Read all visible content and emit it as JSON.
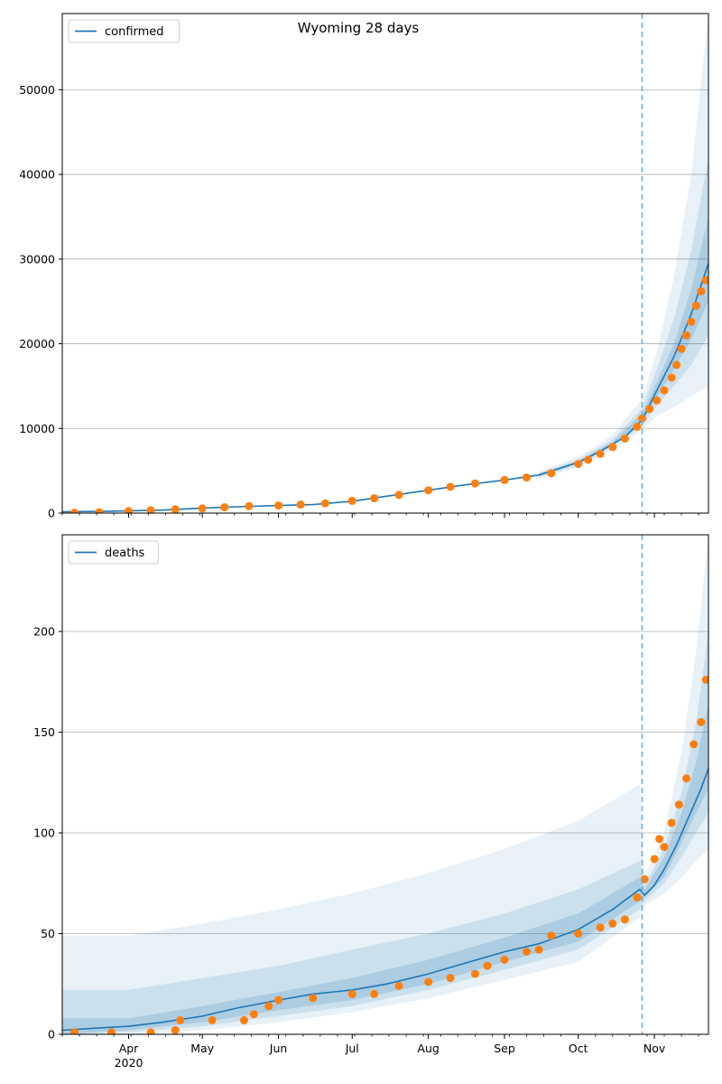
{
  "chart_data": [
    {
      "type": "line",
      "title": "Wyoming 28 days",
      "legend": {
        "entries": [
          "confirmed"
        ],
        "placement": "top-left"
      },
      "grid": {
        "y": true,
        "x": false
      },
      "x_range": [
        "2020-03-05",
        "2020-11-23"
      ],
      "ylim": [
        0,
        59000
      ],
      "y_ticks": [
        0,
        10000,
        20000,
        30000,
        40000,
        50000
      ],
      "forecast_start": "2020-10-27",
      "model_line": {
        "x": [
          "2020-03-05",
          "2020-03-25",
          "2020-04-15",
          "2020-05-01",
          "2020-05-15",
          "2020-06-01",
          "2020-06-15",
          "2020-07-01",
          "2020-07-15",
          "2020-08-01",
          "2020-08-15",
          "2020-09-01",
          "2020-09-15",
          "2020-10-01",
          "2020-10-10",
          "2020-10-20",
          "2020-10-27",
          "2020-11-02",
          "2020-11-09",
          "2020-11-16",
          "2020-11-23"
        ],
        "y": [
          150,
          220,
          350,
          600,
          750,
          900,
          1000,
          1400,
          2000,
          2700,
          3300,
          3900,
          4500,
          6000,
          7300,
          9000,
          11000,
          14500,
          18500,
          23500,
          29500
        ]
      },
      "bands": [
        {
          "level": "outer",
          "x": [
            "2020-09-15",
            "2020-10-01",
            "2020-10-15",
            "2020-10-27",
            "2020-11-02",
            "2020-11-09",
            "2020-11-16",
            "2020-11-23"
          ],
          "low": [
            4100,
            5400,
            7400,
            9800,
            11500,
            12500,
            13800,
            15000
          ],
          "high": [
            4900,
            6600,
            9200,
            13500,
            19000,
            28000,
            40000,
            59000
          ]
        },
        {
          "level": "middle",
          "x": [
            "2020-09-15",
            "2020-10-01",
            "2020-10-15",
            "2020-10-27",
            "2020-11-02",
            "2020-11-09",
            "2020-11-16",
            "2020-11-23"
          ],
          "low": [
            4250,
            5650,
            7800,
            10300,
            12700,
            15000,
            17500,
            21000
          ],
          "high": [
            4750,
            6350,
            8700,
            12400,
            17000,
            23000,
            31000,
            42000
          ]
        },
        {
          "level": "inner",
          "x": [
            "2020-09-15",
            "2020-10-01",
            "2020-10-15",
            "2020-10-27",
            "2020-11-02",
            "2020-11-09",
            "2020-11-16",
            "2020-11-23"
          ],
          "low": [
            4400,
            5850,
            8200,
            10700,
            13700,
            17000,
            20500,
            25000
          ],
          "high": [
            4600,
            6150,
            8400,
            11800,
            15500,
            20000,
            26500,
            35000
          ]
        }
      ],
      "observed": {
        "x": [
          "2020-03-10",
          "2020-03-20",
          "2020-04-01",
          "2020-04-10",
          "2020-04-20",
          "2020-05-01",
          "2020-05-10",
          "2020-05-20",
          "2020-06-01",
          "2020-06-10",
          "2020-06-20",
          "2020-07-01",
          "2020-07-10",
          "2020-07-20",
          "2020-08-01",
          "2020-08-10",
          "2020-08-20",
          "2020-09-01",
          "2020-09-10",
          "2020-09-20",
          "2020-10-01",
          "2020-10-05",
          "2020-10-10",
          "2020-10-15",
          "2020-10-20",
          "2020-10-25",
          "2020-10-27",
          "2020-10-30",
          "2020-11-02",
          "2020-11-05",
          "2020-11-08",
          "2020-11-10",
          "2020-11-12",
          "2020-11-14",
          "2020-11-16",
          "2020-11-18",
          "2020-11-20",
          "2020-11-22"
        ],
        "y": [
          40,
          100,
          250,
          330,
          450,
          560,
          680,
          820,
          900,
          1000,
          1150,
          1450,
          1750,
          2150,
          2700,
          3100,
          3500,
          3900,
          4200,
          4700,
          5800,
          6300,
          7000,
          7800,
          8800,
          10200,
          11200,
          12300,
          13300,
          14500,
          16000,
          17500,
          19400,
          21000,
          22600,
          24500,
          26200,
          27500
        ]
      }
    },
    {
      "type": "line",
      "legend": {
        "entries": [
          "deaths"
        ],
        "placement": "top-left"
      },
      "grid": {
        "y": true,
        "x": false
      },
      "x_range": [
        "2020-03-05",
        "2020-11-23"
      ],
      "ylim": [
        0,
        248
      ],
      "y_ticks": [
        0,
        50,
        100,
        150,
        200
      ],
      "forecast_start": "2020-10-27",
      "x_ticks": [
        {
          "date": "2020-04-01",
          "label": "Apr",
          "sublabel": "2020"
        },
        {
          "date": "2020-05-01",
          "label": "May"
        },
        {
          "date": "2020-06-01",
          "label": "Jun"
        },
        {
          "date": "2020-07-01",
          "label": "Jul"
        },
        {
          "date": "2020-08-01",
          "label": "Aug"
        },
        {
          "date": "2020-09-01",
          "label": "Sep"
        },
        {
          "date": "2020-10-01",
          "label": "Oct"
        },
        {
          "date": "2020-11-01",
          "label": "Nov"
        }
      ],
      "model_line": {
        "x": [
          "2020-03-05",
          "2020-03-18",
          "2020-04-01",
          "2020-04-15",
          "2020-05-01",
          "2020-05-15",
          "2020-06-01",
          "2020-06-15",
          "2020-07-01",
          "2020-07-15",
          "2020-08-01",
          "2020-08-15",
          "2020-09-01",
          "2020-09-15",
          "2020-10-01",
          "2020-10-15",
          "2020-10-26",
          "2020-10-28",
          "2020-11-01",
          "2020-11-05",
          "2020-11-10",
          "2020-11-15",
          "2020-11-20",
          "2020-11-23"
        ],
        "y": [
          2,
          3,
          4,
          6,
          9,
          13,
          17,
          20,
          22,
          25,
          30,
          35,
          41,
          45,
          52,
          62,
          72,
          69,
          74,
          82,
          94,
          108,
          122,
          132
        ]
      },
      "bands": [
        {
          "level": "outer",
          "x": [
            "2020-03-05",
            "2020-04-01",
            "2020-05-01",
            "2020-06-01",
            "2020-07-01",
            "2020-08-01",
            "2020-09-01",
            "2020-10-01",
            "2020-10-26",
            "2020-10-28",
            "2020-11-05",
            "2020-11-12",
            "2020-11-18",
            "2020-11-23"
          ],
          "low": [
            0,
            0,
            2,
            6,
            11,
            18,
            27,
            36,
            58,
            64,
            70,
            78,
            86,
            92
          ],
          "high": [
            49,
            49,
            55,
            62,
            70,
            80,
            92,
            106,
            124,
            78,
            100,
            140,
            190,
            248
          ]
        },
        {
          "level": "middle",
          "x": [
            "2020-03-05",
            "2020-04-01",
            "2020-05-01",
            "2020-06-01",
            "2020-07-01",
            "2020-08-01",
            "2020-09-01",
            "2020-10-01",
            "2020-10-26",
            "2020-10-28",
            "2020-11-05",
            "2020-11-12",
            "2020-11-18",
            "2020-11-23"
          ],
          "low": [
            0,
            1,
            4,
            9,
            14,
            22,
            32,
            42,
            62,
            66,
            75,
            88,
            100,
            110
          ],
          "high": [
            22,
            22,
            28,
            34,
            42,
            50,
            60,
            72,
            86,
            74,
            92,
            120,
            155,
            200
          ]
        },
        {
          "level": "inner",
          "x": [
            "2020-03-05",
            "2020-04-01",
            "2020-05-01",
            "2020-06-01",
            "2020-07-01",
            "2020-08-01",
            "2020-09-01",
            "2020-10-01",
            "2020-10-26",
            "2020-10-28",
            "2020-11-05",
            "2020-11-12",
            "2020-11-18",
            "2020-11-23"
          ],
          "low": [
            0,
            2,
            6,
            12,
            17,
            25,
            36,
            46,
            66,
            68,
            78,
            95,
            110,
            122
          ],
          "high": [
            8,
            8,
            14,
            21,
            28,
            37,
            48,
            60,
            78,
            72,
            88,
            110,
            135,
            165
          ]
        }
      ],
      "observed": {
        "x": [
          "2020-03-10",
          "2020-03-25",
          "2020-04-10",
          "2020-04-20",
          "2020-04-22",
          "2020-05-05",
          "2020-05-18",
          "2020-05-22",
          "2020-05-28",
          "2020-06-01",
          "2020-06-15",
          "2020-07-01",
          "2020-07-10",
          "2020-07-20",
          "2020-08-01",
          "2020-08-10",
          "2020-08-20",
          "2020-08-25",
          "2020-09-01",
          "2020-09-10",
          "2020-09-15",
          "2020-09-20",
          "2020-10-01",
          "2020-10-10",
          "2020-10-15",
          "2020-10-20",
          "2020-10-25",
          "2020-10-28",
          "2020-11-01",
          "2020-11-03",
          "2020-11-05",
          "2020-11-08",
          "2020-11-11",
          "2020-11-14",
          "2020-11-17",
          "2020-11-20",
          "2020-11-22"
        ],
        "y": [
          1,
          1,
          1,
          2,
          7,
          7,
          7,
          10,
          14,
          17,
          18,
          20,
          20,
          24,
          26,
          28,
          30,
          34,
          37,
          41,
          42,
          49,
          50,
          53,
          55,
          57,
          68,
          77,
          87,
          97,
          93,
          105,
          114,
          127,
          144,
          155,
          176
        ]
      }
    }
  ]
}
